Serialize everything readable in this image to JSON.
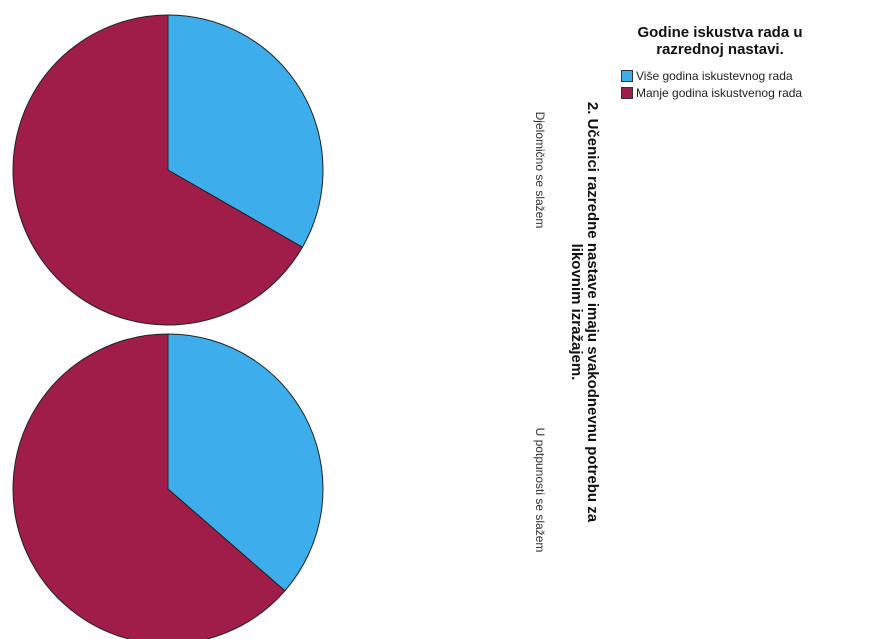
{
  "chart_data": {
    "type": "pie",
    "title": "2. Učenici razredne nastave imaju svakodnevnu potrebu za likovnim izražajem.",
    "title_lines": [
      "2. Učenici razredne nastave imaju svakodnevnu potrebu za",
      "likovnim izražajem."
    ],
    "legend": {
      "title": "Godine iskustva rada u razrednoj nastavi.",
      "title_lines": [
        "Godine iskustva rada u",
        "razrednoj nastavi."
      ],
      "placement": "top-right"
    },
    "series": [
      {
        "name": "Više godina iskustevnog rada",
        "color": "#3daeeb"
      },
      {
        "name": "Manje godina iskustvenog rada",
        "color": "#a01d4a"
      }
    ],
    "panels": [
      {
        "label": "Djelomično se slažem",
        "values": [
          33.3,
          66.7
        ]
      },
      {
        "label": "U potpunosti se slažem",
        "values": [
          36.4,
          63.6
        ]
      }
    ]
  }
}
